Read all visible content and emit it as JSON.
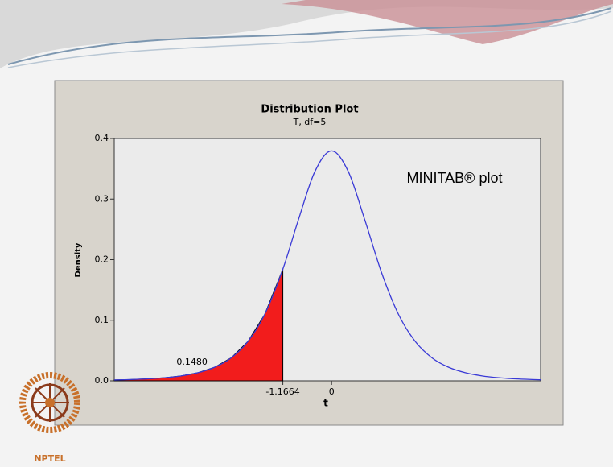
{
  "chart_data": {
    "type": "line",
    "title": "Distribution Plot",
    "subtitle": "T, df=5",
    "x_label": "t",
    "y_label": "Density",
    "annotation": "MINITAB® plot",
    "x": [
      -5.2,
      -4.8,
      -4.4,
      -4,
      -3.6,
      -3.2,
      -2.8,
      -2.4,
      -2,
      -1.6,
      -1.1664,
      -0.8,
      -0.4,
      0,
      0.4,
      0.8,
      1.2,
      1.6,
      2,
      2.4,
      2.8,
      3.2,
      3.6,
      4,
      4.4,
      4.8,
      5
    ],
    "series": [
      {
        "color": "#3a3ad6",
        "values": [
          0.00144,
          0.00215,
          0.00328,
          0.00512,
          0.00819,
          0.0134,
          0.0224,
          0.0381,
          0.0651,
          0.1098,
          0.1844,
          0.2645,
          0.3454,
          0.3796,
          0.3454,
          0.2645,
          0.1777,
          0.1098,
          0.0651,
          0.0381,
          0.0224,
          0.0134,
          0.00819,
          0.00512,
          0.00328,
          0.00215,
          0.00176
        ]
      }
    ],
    "shade": {
      "x_max": -1.1664,
      "area": 0.148,
      "area_label": "0.1480",
      "color": "#f21c1c"
    },
    "xlim": [
      -5.2,
      5
    ],
    "xticks": [
      -1.1664,
      0
    ],
    "ylim": [
      0,
      0.4
    ],
    "yticks": [
      {
        "value": 0,
        "label": "0.0"
      },
      0.1,
      0.2,
      0.3,
      0.4
    ]
  },
  "logo_text": "NPTEL"
}
